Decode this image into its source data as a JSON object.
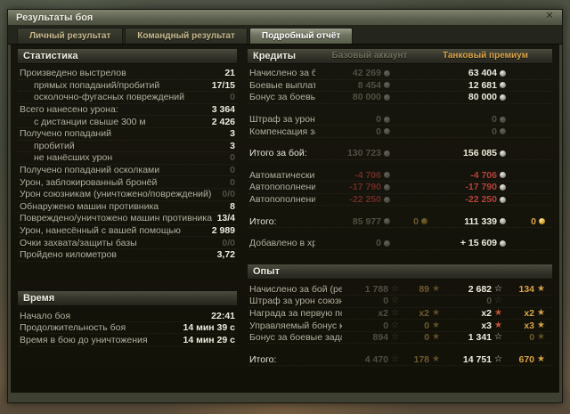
{
  "window": {
    "title": "Результаты боя",
    "close_glyph": "✕"
  },
  "tabs": [
    {
      "label": "Личный результат",
      "active": false
    },
    {
      "label": "Командный результат",
      "active": false
    },
    {
      "label": "Подробный отчёт",
      "active": true
    }
  ],
  "colors": {
    "premium_header": "#d9a348",
    "negative": "#b5423a",
    "gold": "#d9a348"
  },
  "stats": {
    "header": "Статистика",
    "rows": [
      {
        "label": "Произведено выстрелов",
        "value": "21"
      },
      {
        "label": "прямых попаданий/пробитий",
        "value": "17/15",
        "indent": true
      },
      {
        "label": "осколочно-фугасных повреждений",
        "value": "0",
        "indent": true,
        "dim": true
      },
      {
        "label": "Всего нанесено урона:",
        "value": "3 364"
      },
      {
        "label": "с дистанции свыше 300 м",
        "value": "2 426",
        "indent": true
      },
      {
        "label": "Получено попаданий",
        "value": "3"
      },
      {
        "label": "пробитий",
        "value": "3",
        "indent": true
      },
      {
        "label": "не нанёсших урон",
        "value": "0",
        "indent": true,
        "dim": true
      },
      {
        "label": "Получено попаданий осколками",
        "value": "0",
        "dim": true
      },
      {
        "label": "Урон, заблокированный бронёй",
        "value": "0",
        "dim": true
      },
      {
        "label": "Урон союзникам (уничтожено/повреждений)",
        "value": "0/0",
        "dim": true
      },
      {
        "label": "Обнаружено машин противника",
        "value": "8"
      },
      {
        "label": "Повреждено/уничтожено машин противника",
        "value": "13/4"
      },
      {
        "label": "Урон, нанесённый с вашей помощью",
        "value": "2 989"
      },
      {
        "label": "Очки захвата/защиты базы",
        "value": "0/0",
        "dim": true
      },
      {
        "label": "Пройдено километров",
        "value": "3,72"
      }
    ]
  },
  "time": {
    "header": "Время",
    "rows": [
      {
        "label": "Начало боя",
        "value": "22:41"
      },
      {
        "label": "Продолжительность боя",
        "value": "14 мин 39 с"
      },
      {
        "label": "Время в бою до уничтожения",
        "value": "14 мин 29 с"
      }
    ]
  },
  "credits": {
    "header": "Кредиты",
    "col_base": "Базовый аккаунт",
    "col_premium": "Танковый премиум",
    "rows": [
      {
        "label": "Начислено за бой",
        "cells": [
          {
            "t": "42 269",
            "c": "dim",
            "i": "coin-silver-dim"
          },
          null,
          {
            "t": "63 404",
            "c": "bright",
            "i": "coin-silver"
          },
          null
        ]
      },
      {
        "label": "Боевые выплаты",
        "cells": [
          {
            "t": "8 454",
            "c": "dim",
            "i": "coin-silver-dim"
          },
          null,
          {
            "t": "12 681",
            "c": "bright",
            "i": "coin-silver"
          },
          null
        ]
      },
      {
        "label": "Бонус за боевые задачи и события",
        "cells": [
          {
            "t": "80 000",
            "c": "dim",
            "i": "coin-silver-dim"
          },
          null,
          {
            "t": "80 000",
            "c": "bright",
            "i": "coin-silver"
          },
          null
        ]
      },
      {
        "label": "Штраф за урон союзникам",
        "gap": true,
        "cells": [
          {
            "t": "0",
            "c": "dim",
            "i": "coin-silver-dim"
          },
          null,
          {
            "t": "0",
            "c": "dim",
            "i": "coin-silver-dim"
          },
          null
        ]
      },
      {
        "label": "Компенсация за урон от союзников",
        "cells": [
          {
            "t": "0",
            "c": "dim",
            "i": "coin-silver-dim"
          },
          null,
          {
            "t": "0",
            "c": "dim",
            "i": "coin-silver-dim"
          },
          null
        ]
      },
      {
        "label": "Итого за бой:",
        "gap": true,
        "total": true,
        "cells": [
          {
            "t": "130 723",
            "c": "dim",
            "i": "coin-silver-dim"
          },
          null,
          {
            "t": "156 085",
            "c": "bright",
            "i": "coin-silver"
          },
          null
        ]
      },
      {
        "label": "Автоматический ремонт техники",
        "gap": true,
        "cells": [
          {
            "t": "-4 706",
            "c": "red-dim",
            "i": "coin-silver-dim"
          },
          null,
          {
            "t": "-4 706",
            "c": "red",
            "i": "coin-silver"
          },
          null
        ]
      },
      {
        "label": "Автопополнение боекомплекта",
        "cells": [
          {
            "t": "-17 790",
            "c": "red-dim",
            "i": "coin-silver-dim"
          },
          null,
          {
            "t": "-17 790",
            "c": "red",
            "i": "coin-silver"
          },
          null
        ]
      },
      {
        "label": "Автопополнение снаряжения",
        "cells": [
          {
            "t": "-22 250",
            "c": "red-dim",
            "i": "coin-silver-dim"
          },
          null,
          {
            "t": "-22 250",
            "c": "red",
            "i": "coin-silver"
          },
          null
        ]
      },
      {
        "label": "Итого:",
        "gap": true,
        "total": true,
        "cells": [
          {
            "t": "85 977",
            "c": "dim",
            "i": "coin-silver-dim"
          },
          {
            "t": "0",
            "c": "gold-dim",
            "i": "coin-gold-dim"
          },
          {
            "t": "111 339",
            "c": "bright",
            "i": "coin-silver"
          },
          {
            "t": "0",
            "c": "gold",
            "i": "coin-gold"
          }
        ]
      },
      {
        "label": "Добавлено в хранилище кредитов",
        "gap": true,
        "cells": [
          {
            "t": "0",
            "c": "dim",
            "i": "coin-silver-dim"
          },
          null,
          {
            "t": "+ 15 609",
            "c": "bright",
            "i": "coin-silver"
          },
          null
        ]
      }
    ]
  },
  "xp": {
    "header": "Опыт",
    "rows": [
      {
        "label": "Начислено за бой (рекорд)",
        "cells": [
          {
            "t": "1 788",
            "c": "dim",
            "i": "star-xp-dim"
          },
          {
            "t": "89",
            "c": "gold-dim",
            "i": "star-free-dim"
          },
          {
            "t": "2 682",
            "c": "bright",
            "i": "star-xp"
          },
          {
            "t": "134",
            "c": "gold",
            "i": "star-free"
          }
        ]
      },
      {
        "label": "Штраф за урон союзникам",
        "cells": [
          {
            "t": "0",
            "c": "dim",
            "i": "star-xp-dim"
          },
          null,
          {
            "t": "0",
            "c": "dim",
            "i": "star-xp-dim"
          },
          null
        ]
      },
      {
        "label": "Награда за первую победу в день",
        "cells": [
          {
            "t": "x2",
            "c": "dim",
            "i": "star-xp-dim"
          },
          {
            "t": "x2",
            "c": "gold-dim",
            "i": "star-free-dim"
          },
          {
            "t": "x2",
            "c": "bright",
            "i": "star-mult"
          },
          {
            "t": "x2",
            "c": "gold",
            "i": "star-free"
          }
        ]
      },
      {
        "label": "Управляемый бонус к опыту",
        "cells": [
          {
            "t": "0",
            "c": "dim",
            "i": "star-xp-dim"
          },
          {
            "t": "0",
            "c": "gold-dim",
            "i": "star-free-dim"
          },
          {
            "t": "x3",
            "c": "bright",
            "i": "star-mult"
          },
          {
            "t": "x3",
            "c": "gold",
            "i": "star-free"
          }
        ]
      },
      {
        "label": "Бонус за боевые задачи и события",
        "cells": [
          {
            "t": "894",
            "c": "dim",
            "i": "star-xp-dim"
          },
          {
            "t": "0",
            "c": "gold-dim",
            "i": "star-free-dim"
          },
          {
            "t": "1 341",
            "c": "bright",
            "i": "star-xp"
          },
          {
            "t": "0",
            "c": "gold-dim",
            "i": "star-free-dim"
          }
        ]
      },
      {
        "label": "Итого:",
        "gap": true,
        "total": true,
        "cells": [
          {
            "t": "4 470",
            "c": "dim",
            "i": "star-xp-dim"
          },
          {
            "t": "178",
            "c": "gold-dim",
            "i": "star-free-dim"
          },
          {
            "t": "14 751",
            "c": "bright",
            "i": "star-xp"
          },
          {
            "t": "670",
            "c": "gold",
            "i": "star-free"
          }
        ]
      }
    ]
  }
}
